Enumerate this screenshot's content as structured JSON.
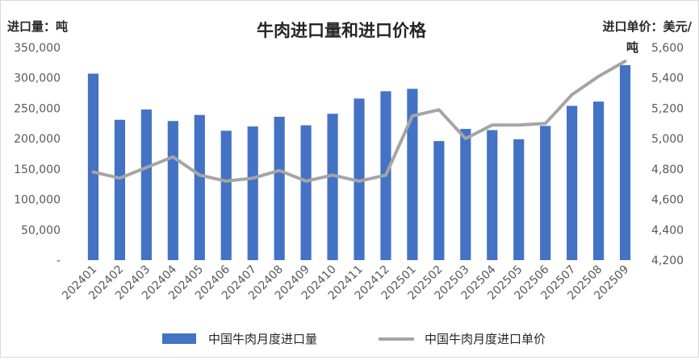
{
  "chart_data": {
    "type": "bar+line",
    "title": "牛肉进口量和进口价格",
    "y_left_label": "进口量：吨",
    "y_right_label_line1": "进口单价：美元/",
    "y_right_label_line2": "吨",
    "categories": [
      "202401",
      "202402",
      "202403",
      "202404",
      "202405",
      "202406",
      "202407",
      "202408",
      "202409",
      "202410",
      "202411",
      "202412",
      "202501",
      "202502",
      "202503",
      "202504",
      "202505",
      "202506",
      "202507",
      "202508",
      "202509"
    ],
    "series": [
      {
        "name": "中国牛肉月度进口量",
        "type": "bar",
        "axis": "left",
        "color": "#4472C4",
        "values": [
          307000,
          231000,
          248000,
          229000,
          239000,
          213000,
          220000,
          236000,
          222000,
          241000,
          266000,
          278000,
          282000,
          196000,
          216000,
          214000,
          199000,
          221000,
          254000,
          261000,
          321000
        ]
      },
      {
        "name": "中国牛肉月度进口单价",
        "type": "line",
        "axis": "right",
        "color": "#A5A5A5",
        "values": [
          4780,
          4740,
          4810,
          4880,
          4760,
          4720,
          4740,
          4790,
          4720,
          4760,
          4720,
          4760,
          5150,
          5190,
          5000,
          5090,
          5090,
          5100,
          5290,
          5410,
          5510
        ]
      }
    ],
    "y_left": {
      "min": 0,
      "max": 350000,
      "step": 50000,
      "ticks": [
        "-",
        "50,000",
        "100,000",
        "150,000",
        "200,000",
        "250,000",
        "300,000",
        "350,000"
      ]
    },
    "y_right": {
      "min": 4200,
      "max": 5600,
      "step": 200,
      "ticks": [
        "4,200",
        "4,400",
        "4,600",
        "4,800",
        "5,000",
        "5,200",
        "5,400",
        "5,600"
      ]
    },
    "grid": false,
    "legend_position": "bottom"
  }
}
